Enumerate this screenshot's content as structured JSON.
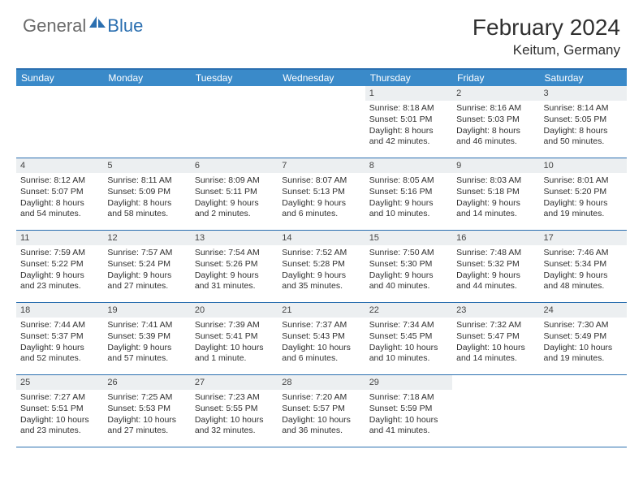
{
  "logo": {
    "part1": "General",
    "part2": "Blue"
  },
  "title": "February 2024",
  "location": "Keitum, Germany",
  "colors": {
    "header_bg": "#3a8ac9",
    "border": "#2b6fb0",
    "daynum_bg": "#eceff1",
    "text": "#303030",
    "logo_gray": "#6a6a6a",
    "logo_blue": "#2b6fb0"
  },
  "day_headers": [
    "Sunday",
    "Monday",
    "Tuesday",
    "Wednesday",
    "Thursday",
    "Friday",
    "Saturday"
  ],
  "weeks": [
    [
      {
        "n": "",
        "sr": "",
        "ss": "",
        "dl": ""
      },
      {
        "n": "",
        "sr": "",
        "ss": "",
        "dl": ""
      },
      {
        "n": "",
        "sr": "",
        "ss": "",
        "dl": ""
      },
      {
        "n": "",
        "sr": "",
        "ss": "",
        "dl": ""
      },
      {
        "n": "1",
        "sr": "Sunrise: 8:18 AM",
        "ss": "Sunset: 5:01 PM",
        "dl": "Daylight: 8 hours and 42 minutes."
      },
      {
        "n": "2",
        "sr": "Sunrise: 8:16 AM",
        "ss": "Sunset: 5:03 PM",
        "dl": "Daylight: 8 hours and 46 minutes."
      },
      {
        "n": "3",
        "sr": "Sunrise: 8:14 AM",
        "ss": "Sunset: 5:05 PM",
        "dl": "Daylight: 8 hours and 50 minutes."
      }
    ],
    [
      {
        "n": "4",
        "sr": "Sunrise: 8:12 AM",
        "ss": "Sunset: 5:07 PM",
        "dl": "Daylight: 8 hours and 54 minutes."
      },
      {
        "n": "5",
        "sr": "Sunrise: 8:11 AM",
        "ss": "Sunset: 5:09 PM",
        "dl": "Daylight: 8 hours and 58 minutes."
      },
      {
        "n": "6",
        "sr": "Sunrise: 8:09 AM",
        "ss": "Sunset: 5:11 PM",
        "dl": "Daylight: 9 hours and 2 minutes."
      },
      {
        "n": "7",
        "sr": "Sunrise: 8:07 AM",
        "ss": "Sunset: 5:13 PM",
        "dl": "Daylight: 9 hours and 6 minutes."
      },
      {
        "n": "8",
        "sr": "Sunrise: 8:05 AM",
        "ss": "Sunset: 5:16 PM",
        "dl": "Daylight: 9 hours and 10 minutes."
      },
      {
        "n": "9",
        "sr": "Sunrise: 8:03 AM",
        "ss": "Sunset: 5:18 PM",
        "dl": "Daylight: 9 hours and 14 minutes."
      },
      {
        "n": "10",
        "sr": "Sunrise: 8:01 AM",
        "ss": "Sunset: 5:20 PM",
        "dl": "Daylight: 9 hours and 19 minutes."
      }
    ],
    [
      {
        "n": "11",
        "sr": "Sunrise: 7:59 AM",
        "ss": "Sunset: 5:22 PM",
        "dl": "Daylight: 9 hours and 23 minutes."
      },
      {
        "n": "12",
        "sr": "Sunrise: 7:57 AM",
        "ss": "Sunset: 5:24 PM",
        "dl": "Daylight: 9 hours and 27 minutes."
      },
      {
        "n": "13",
        "sr": "Sunrise: 7:54 AM",
        "ss": "Sunset: 5:26 PM",
        "dl": "Daylight: 9 hours and 31 minutes."
      },
      {
        "n": "14",
        "sr": "Sunrise: 7:52 AM",
        "ss": "Sunset: 5:28 PM",
        "dl": "Daylight: 9 hours and 35 minutes."
      },
      {
        "n": "15",
        "sr": "Sunrise: 7:50 AM",
        "ss": "Sunset: 5:30 PM",
        "dl": "Daylight: 9 hours and 40 minutes."
      },
      {
        "n": "16",
        "sr": "Sunrise: 7:48 AM",
        "ss": "Sunset: 5:32 PM",
        "dl": "Daylight: 9 hours and 44 minutes."
      },
      {
        "n": "17",
        "sr": "Sunrise: 7:46 AM",
        "ss": "Sunset: 5:34 PM",
        "dl": "Daylight: 9 hours and 48 minutes."
      }
    ],
    [
      {
        "n": "18",
        "sr": "Sunrise: 7:44 AM",
        "ss": "Sunset: 5:37 PM",
        "dl": "Daylight: 9 hours and 52 minutes."
      },
      {
        "n": "19",
        "sr": "Sunrise: 7:41 AM",
        "ss": "Sunset: 5:39 PM",
        "dl": "Daylight: 9 hours and 57 minutes."
      },
      {
        "n": "20",
        "sr": "Sunrise: 7:39 AM",
        "ss": "Sunset: 5:41 PM",
        "dl": "Daylight: 10 hours and 1 minute."
      },
      {
        "n": "21",
        "sr": "Sunrise: 7:37 AM",
        "ss": "Sunset: 5:43 PM",
        "dl": "Daylight: 10 hours and 6 minutes."
      },
      {
        "n": "22",
        "sr": "Sunrise: 7:34 AM",
        "ss": "Sunset: 5:45 PM",
        "dl": "Daylight: 10 hours and 10 minutes."
      },
      {
        "n": "23",
        "sr": "Sunrise: 7:32 AM",
        "ss": "Sunset: 5:47 PM",
        "dl": "Daylight: 10 hours and 14 minutes."
      },
      {
        "n": "24",
        "sr": "Sunrise: 7:30 AM",
        "ss": "Sunset: 5:49 PM",
        "dl": "Daylight: 10 hours and 19 minutes."
      }
    ],
    [
      {
        "n": "25",
        "sr": "Sunrise: 7:27 AM",
        "ss": "Sunset: 5:51 PM",
        "dl": "Daylight: 10 hours and 23 minutes."
      },
      {
        "n": "26",
        "sr": "Sunrise: 7:25 AM",
        "ss": "Sunset: 5:53 PM",
        "dl": "Daylight: 10 hours and 27 minutes."
      },
      {
        "n": "27",
        "sr": "Sunrise: 7:23 AM",
        "ss": "Sunset: 5:55 PM",
        "dl": "Daylight: 10 hours and 32 minutes."
      },
      {
        "n": "28",
        "sr": "Sunrise: 7:20 AM",
        "ss": "Sunset: 5:57 PM",
        "dl": "Daylight: 10 hours and 36 minutes."
      },
      {
        "n": "29",
        "sr": "Sunrise: 7:18 AM",
        "ss": "Sunset: 5:59 PM",
        "dl": "Daylight: 10 hours and 41 minutes."
      },
      {
        "n": "",
        "sr": "",
        "ss": "",
        "dl": ""
      },
      {
        "n": "",
        "sr": "",
        "ss": "",
        "dl": ""
      }
    ]
  ]
}
